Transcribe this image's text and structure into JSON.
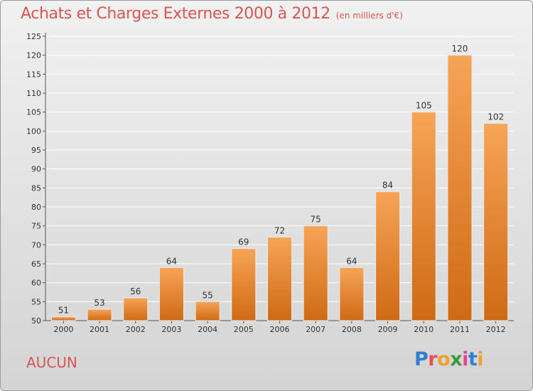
{
  "title": "Achats et Charges Externes 2000 à 2012",
  "subtitle": "(en milliers d'€)",
  "commune": "AUCUN",
  "logo": {
    "text": "Proxiti",
    "letters": [
      {
        "char": "P",
        "color": "#2f7fd0"
      },
      {
        "char": "r",
        "color": "#e8524f"
      },
      {
        "char": "o",
        "color": "#f0a030"
      },
      {
        "char": "x",
        "color": "#3a9a3a"
      },
      {
        "char": "i",
        "color": "#e04a8a"
      },
      {
        "char": "t",
        "color": "#2f7fd0"
      },
      {
        "char": "i",
        "color": "#f0a030"
      }
    ]
  },
  "colors": {
    "title": "#d85555",
    "bar_top": "#f7a457",
    "bar_bottom": "#cf6a14",
    "grid": "#ffffff"
  },
  "chart_data": {
    "type": "bar",
    "title": "Achats et Charges Externes 2000 à 2012",
    "subtitle": "(en milliers d'€)",
    "categories": [
      "2000",
      "2001",
      "2002",
      "2003",
      "2004",
      "2005",
      "2006",
      "2007",
      "2008",
      "2009",
      "2010",
      "2011",
      "2012"
    ],
    "values": [
      51,
      53,
      56,
      64,
      55,
      69,
      72,
      75,
      64,
      84,
      105,
      120,
      102
    ],
    "ylim": [
      50,
      125
    ],
    "yticks": [
      50,
      55,
      60,
      65,
      70,
      75,
      80,
      85,
      90,
      95,
      100,
      105,
      110,
      115,
      120,
      125
    ],
    "grid": true,
    "xlabel": "",
    "ylabel": ""
  }
}
